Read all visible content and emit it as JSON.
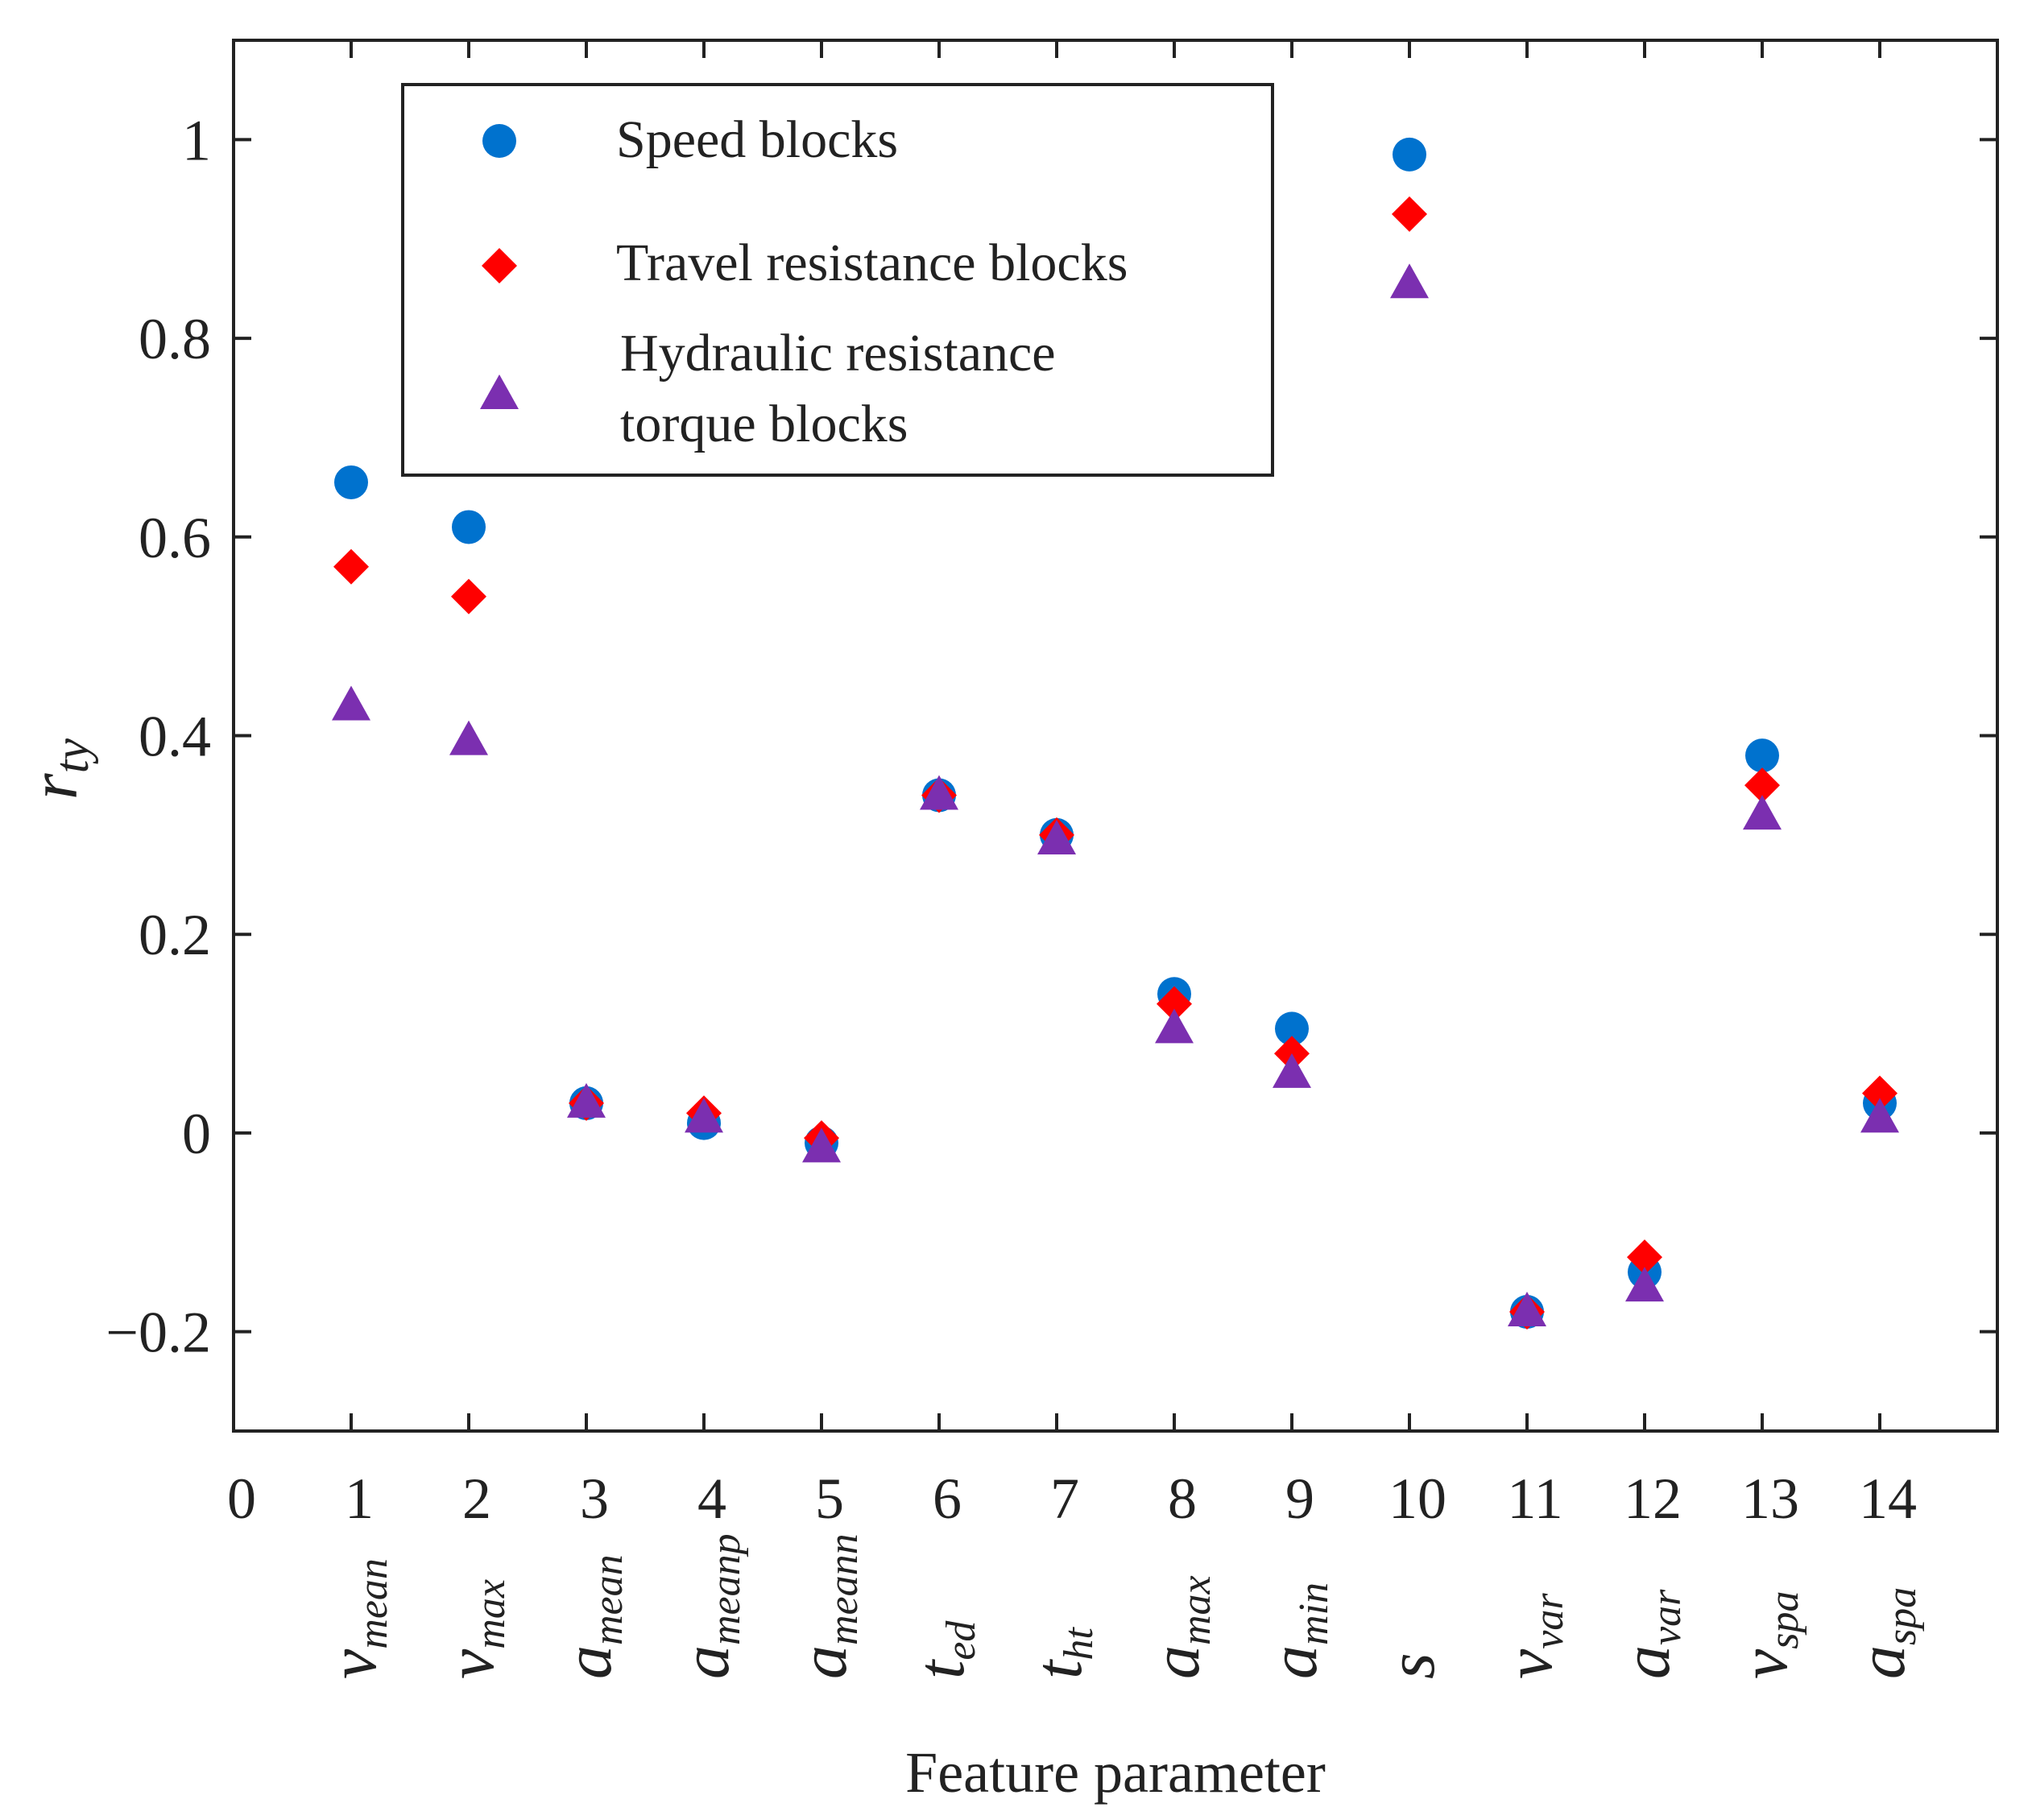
{
  "chart_data": {
    "type": "scatter",
    "title": "",
    "xlabel": "Feature parameter",
    "ylabel": {
      "main": "r",
      "sub": "ty"
    },
    "xlim": [
      0,
      15
    ],
    "ylim": [
      -0.3,
      1.1
    ],
    "x_ticks": [
      "0",
      "1",
      "2",
      "3",
      "4",
      "5",
      "6",
      "7",
      "8",
      "9",
      "10",
      "11",
      "12",
      "13",
      "14"
    ],
    "y_ticks": [
      {
        "value": -0.2,
        "label": "−0.2"
      },
      {
        "value": 0,
        "label": "0"
      },
      {
        "value": 0.2,
        "label": "0.2"
      },
      {
        "value": 0.4,
        "label": "0.4"
      },
      {
        "value": 0.6,
        "label": "0.6"
      },
      {
        "value": 0.8,
        "label": "0.8"
      },
      {
        "value": 1,
        "label": "1"
      }
    ],
    "x": [
      1,
      2,
      3,
      4,
      5,
      6,
      7,
      8,
      9,
      10,
      11,
      12,
      13,
      14
    ],
    "feature_labels": [
      {
        "main": "v",
        "sub": "mean",
        "sub_italic": true
      },
      {
        "main": "v",
        "sub": "max",
        "sub_italic": false
      },
      {
        "main": "a",
        "sub": "mean",
        "sub_italic": true
      },
      {
        "main": "a",
        "sub": "meanp",
        "sub_italic": true
      },
      {
        "main": "a",
        "sub": "meann",
        "sub_italic": true
      },
      {
        "main": "t",
        "sub": "ed",
        "sub_italic": true
      },
      {
        "main": "t",
        "sub": "ht",
        "sub_italic": true
      },
      {
        "main": "a",
        "sub": "max",
        "sub_italic": false
      },
      {
        "main": "a",
        "sub": "min",
        "sub_italic": false
      },
      {
        "main": "s",
        "sub": "",
        "sub_italic": false
      },
      {
        "main": "v",
        "sub": "var",
        "sub_italic": false
      },
      {
        "main": "a",
        "sub": "var",
        "sub_italic": false
      },
      {
        "main": "v",
        "sub": "spa",
        "sub_italic": true
      },
      {
        "main": "a",
        "sub": "spa",
        "sub_italic": true
      }
    ],
    "series": [
      {
        "name": "Speed blocks",
        "marker": "circle",
        "color": "#0072CE",
        "values": [
          0.655,
          0.61,
          0.03,
          0.01,
          -0.01,
          0.34,
          0.3,
          0.14,
          0.105,
          0.985,
          -0.18,
          -0.14,
          0.38,
          0.03
        ]
      },
      {
        "name": "Travel resistance blocks",
        "marker": "diamond",
        "color": "#FF0000",
        "values": [
          0.57,
          0.54,
          0.03,
          0.02,
          -0.005,
          0.34,
          0.3,
          0.13,
          0.08,
          0.925,
          -0.18,
          -0.125,
          0.35,
          0.04
        ]
      },
      {
        "name": "Hydraulic resistance torque blocks",
        "legend_lines": [
          "Hydraulic resistance",
          "torque blocks"
        ],
        "marker": "triangle",
        "color": "#7B2FB0",
        "values": [
          0.43,
          0.395,
          0.03,
          0.015,
          -0.015,
          0.34,
          0.295,
          0.105,
          0.06,
          0.855,
          -0.18,
          -0.155,
          0.32,
          0.015
        ]
      }
    ],
    "legend": {
      "position": "top-left"
    }
  }
}
